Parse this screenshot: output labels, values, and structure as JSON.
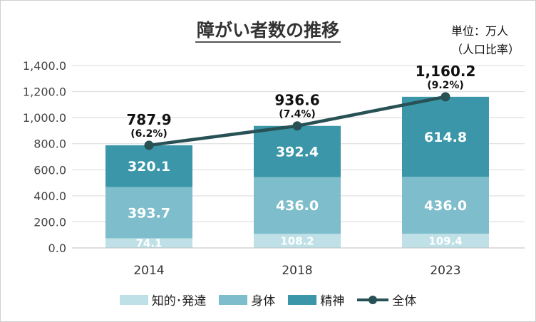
{
  "title": "障がい者数の推移",
  "unit_note": [
    "単位：万人",
    "（人口比率）"
  ],
  "colors": {
    "intellectual": "#bee0e6",
    "physical": "#7ebdcb",
    "mental": "#3a96a8",
    "total_line": "#275155"
  },
  "chart_data": {
    "type": "bar",
    "stacked": true,
    "title": "障がい者数の推移",
    "categories": [
      "2014",
      "2018",
      "2023"
    ],
    "series": [
      {
        "name": "知的･発達",
        "values": [
          74.1,
          108.2,
          109.4
        ],
        "labels": [
          "74.1",
          "108.2",
          "109.4"
        ]
      },
      {
        "name": "身体",
        "values": [
          393.7,
          436.0,
          436.0
        ],
        "labels": [
          "393.7",
          "436.0",
          "436.0"
        ]
      },
      {
        "name": "精神",
        "values": [
          320.1,
          392.4,
          614.8
        ],
        "labels": [
          "320.1",
          "392.4",
          "614.8"
        ]
      }
    ],
    "line": {
      "name": "全体",
      "values": [
        787.9,
        936.6,
        1160.2
      ],
      "labels": [
        "787.9",
        "936.6",
        "1,160.2"
      ],
      "ratios": [
        "(6.2%)",
        "(7.4%)",
        "(9.2%)"
      ]
    },
    "ylim": [
      0,
      1400
    ],
    "yticks": [
      0,
      200,
      400,
      600,
      800,
      1000,
      1200,
      1400
    ],
    "ytick_labels": [
      "0.0",
      "200.0",
      "400.0",
      "600.0",
      "800.0",
      "1,000.0",
      "1,200.0",
      "1,400.0"
    ],
    "grid": true,
    "legend_position": "bottom",
    "xlabel": "",
    "ylabel": ""
  }
}
